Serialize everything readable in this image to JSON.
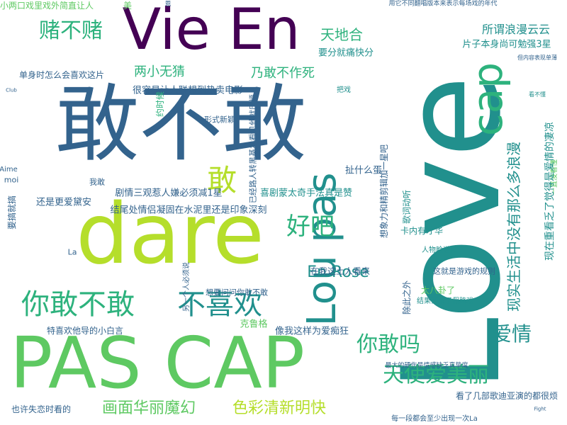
{
  "colors": {
    "dark_purple": "#440154",
    "indigo": "#3e4a89",
    "blue": "#33638d",
    "teal": "#21908d",
    "green": "#2db27d",
    "lime": "#5ec962",
    "yellow_green": "#b5de2b"
  },
  "words": {
    "w01": "敢不敢",
    "w02": "Love",
    "w03": "dare",
    "w04": "PAS CAP",
    "w05": "Vie En",
    "w06": "你敢不敢",
    "w07": "不喜欢",
    "w08": "cap",
    "w09": "Lou pas",
    "w10": "天使爱美丽",
    "w11": "赌不赌",
    "w12": "敢",
    "w13": "好吧",
    "w14": "画面华丽魔幻",
    "w15": "色彩清新明快",
    "w16": "你敢吗",
    "w17": "爱情",
    "w18": "天地合",
    "w19": "现实生活中没有那么多浪漫",
    "w20": "En Rose",
    "w21": "两小无猜",
    "w22": "乃敢不作死",
    "w23": "所谓浪漫云云",
    "w24": "片子本身尚可勉强3星",
    "w25": "要分就痛快分",
    "w26": "很容易让人联想到热卖电影",
    "w27": "喜剧蒙太奇手法真是赞",
    "w28": "剧情三观惹人嫌必须减1星",
    "w29": "结尾处情侣凝固在水泥里还是印象深刻",
    "w30": "还是更爱黛安",
    "w31": "单身时怎么会喜欢这片",
    "w32": "小两口戏里戏外简直让人",
    "w33": "扯什么蛋",
    "w34": "卡内有才华",
    "w35": "在我这土人看来",
    "w36": "太八卦了",
    "w37": "想要问问你敢不敢",
    "w38": "克鲁格",
    "w39": "像我这样为爱痴狂",
    "w40": "特喜欢他导的小白言",
    "w41": "也许失恋时看的",
    "w42": "看了几部歌迪亚演的都很烦",
    "w43": "这就是游戏的规则",
    "w44": "除此之外",
    "w45": "人物脸谱化",
    "w46": "想象力和精剪辑加一星吧",
    "w47": "歌词动听",
    "w48": "一直没看懂",
    "w49": "现在重看乏了觉得是爱情的凄凉",
    "w50": "已经路人转黑基本看见他就厌烦",
    "w51": "形式新颖",
    "w52": "约时候",
    "w53": "要搞就搞",
    "w54": "最大的硬伤是情感缺乏真挚度",
    "w55": "每一段都会至少出现一次La",
    "w56": "结果都成了假路戏",
    "w57": "我敢",
    "w58": "La",
    "w59": "moi",
    "w60": "Aime",
    "w61": "Club",
    "w62": "Fight",
    "w63": "恩",
    "w64": "美",
    "w65": "把戏",
    "w66": "另一个人必须说",
    "w67": "用它不同翻唱版本来表示每场戏的年代",
    "w68": "但内容表现单薄",
    "w69": "看不懂"
  }
}
